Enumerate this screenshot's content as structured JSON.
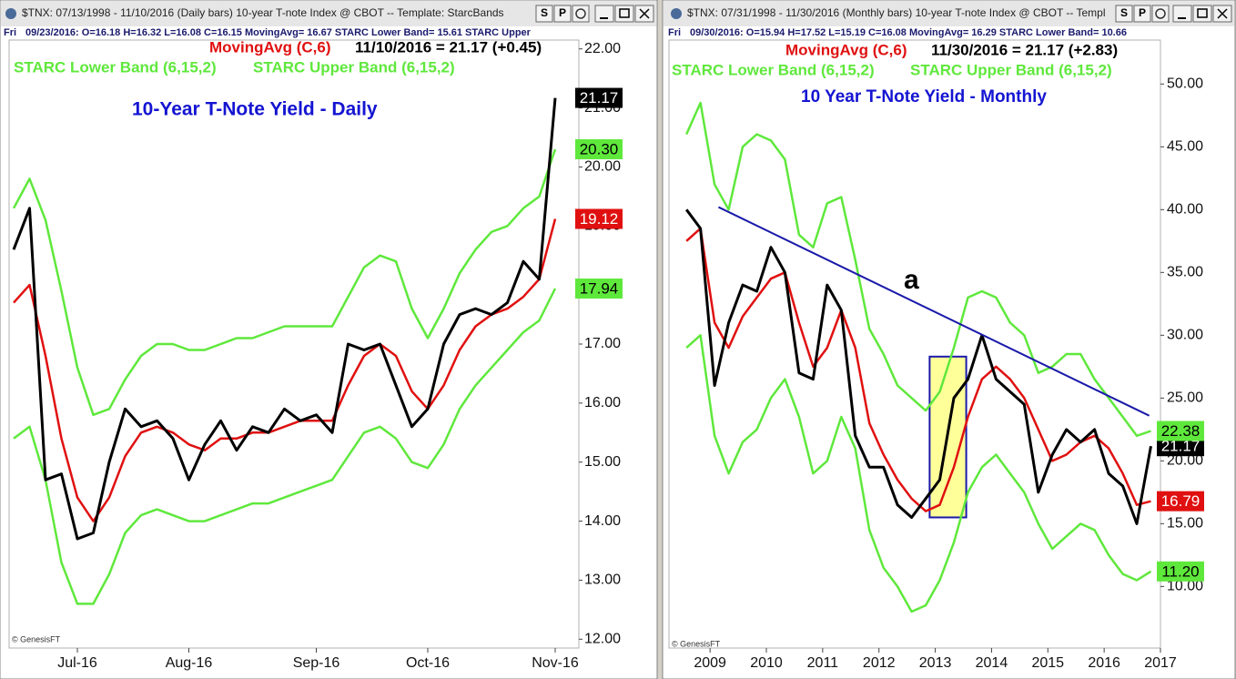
{
  "windows": [
    {
      "title": "$TNX: 07/13/1998 - 11/10/2016 (Daily bars)  10-year T-note Index @ CBOT  --  Template: StarcBands",
      "buttons": [
        "S",
        "P"
      ],
      "day": "Fri",
      "info": "09/23/2016:  O=16.18  H=16.32  L=16.08  C=16.15  MovingAvg= 16.67  STARC Lower Band= 15.61  STARC Upper"
    },
    {
      "title": "$TNX: 07/31/1998 - 11/30/2016 (Monthly bars)  10-year T-note Index @ CBOT  --  Templ",
      "buttons": [
        "S",
        "P"
      ],
      "day": "Fri",
      "info": "09/30/2016:  O=15.94  H=17.52  L=15.19  C=16.08  MovingAvg= 16.29  STARC Lower Band= 10.66"
    }
  ],
  "chart_data": [
    {
      "type": "line",
      "title": "10-Year T-Note Yield - Daily",
      "readout": "11/10/2016 = 21.17 (+0.45)",
      "credit": "© GenesisFT",
      "categories": [
        null,
        null,
        null,
        null,
        "Jul-16",
        null,
        null,
        null,
        null,
        null,
        null,
        "Aug-16",
        null,
        null,
        null,
        null,
        null,
        null,
        null,
        "Sep-16",
        null,
        null,
        null,
        null,
        null,
        null,
        "Oct-16",
        null,
        null,
        null,
        null,
        null,
        null,
        null,
        "Nov-16"
      ],
      "series": [
        {
          "color": "#000000",
          "values": [
            18.6,
            19.3,
            14.7,
            14.8,
            13.7,
            13.8,
            15.0,
            15.9,
            15.6,
            15.7,
            15.4,
            14.7,
            15.3,
            15.7,
            15.2,
            15.6,
            15.5,
            15.9,
            15.7,
            15.8,
            15.5,
            17.0,
            16.9,
            17.0,
            16.3,
            15.6,
            15.9,
            17.0,
            17.5,
            17.6,
            17.5,
            17.7,
            18.4,
            18.1,
            21.17
          ],
          "value_labels": [
            null,
            null,
            null,
            null,
            null,
            null,
            null,
            null,
            null,
            null,
            null,
            null,
            null,
            null,
            null,
            null,
            null,
            null,
            null,
            null,
            null,
            null,
            null,
            null,
            null,
            null,
            null,
            null,
            null,
            null,
            null,
            null,
            null,
            null,
            "21.17"
          ]
        },
        {
          "name": "MovingAvg (C,6)",
          "color": "#e01010",
          "values": [
            17.7,
            18.0,
            16.8,
            15.4,
            14.4,
            14.0,
            14.4,
            15.1,
            15.5,
            15.6,
            15.5,
            15.3,
            15.2,
            15.4,
            15.4,
            15.5,
            15.5,
            15.6,
            15.7,
            15.7,
            15.7,
            16.3,
            16.8,
            17.0,
            16.8,
            16.2,
            15.9,
            16.3,
            16.9,
            17.3,
            17.5,
            17.6,
            17.8,
            18.1,
            19.12
          ],
          "value_labels": [
            null,
            null,
            null,
            null,
            null,
            null,
            null,
            null,
            null,
            null,
            null,
            null,
            null,
            null,
            null,
            null,
            null,
            null,
            null,
            null,
            null,
            null,
            null,
            null,
            null,
            null,
            null,
            null,
            null,
            null,
            null,
            null,
            null,
            null,
            "19.12"
          ]
        },
        {
          "name": "STARC Lower Band (6,15,2)",
          "color": "#5fe83c",
          "values": [
            15.4,
            15.6,
            14.7,
            13.3,
            12.6,
            12.6,
            13.1,
            13.8,
            14.1,
            14.2,
            14.1,
            14.0,
            14.0,
            14.1,
            14.2,
            14.3,
            14.3,
            14.4,
            14.5,
            14.6,
            14.7,
            15.1,
            15.5,
            15.6,
            15.4,
            15.0,
            14.9,
            15.3,
            15.9,
            16.3,
            16.6,
            16.9,
            17.2,
            17.4,
            17.94
          ],
          "value_labels": [
            null,
            null,
            null,
            null,
            null,
            null,
            null,
            null,
            null,
            null,
            null,
            null,
            null,
            null,
            null,
            null,
            null,
            null,
            null,
            null,
            null,
            null,
            null,
            null,
            null,
            null,
            null,
            null,
            null,
            null,
            null,
            null,
            null,
            null,
            "17.94"
          ]
        },
        {
          "name": "STARC Upper Band (6,15,2)",
          "color": "#5fe83c",
          "values": [
            19.3,
            19.8,
            19.1,
            17.9,
            16.6,
            15.8,
            15.9,
            16.4,
            16.8,
            17.0,
            17.0,
            16.9,
            16.9,
            17.0,
            17.1,
            17.1,
            17.2,
            17.3,
            17.3,
            17.3,
            17.3,
            17.8,
            18.3,
            18.5,
            18.4,
            17.6,
            17.1,
            17.6,
            18.2,
            18.6,
            18.9,
            19.0,
            19.3,
            19.5,
            20.3
          ],
          "value_labels": [
            null,
            null,
            null,
            null,
            null,
            null,
            null,
            null,
            null,
            null,
            null,
            null,
            null,
            null,
            null,
            null,
            null,
            null,
            null,
            null,
            null,
            null,
            null,
            null,
            null,
            null,
            null,
            null,
            null,
            null,
            null,
            null,
            null,
            null,
            "20.30"
          ]
        }
      ],
      "ylim": [
        11.85,
        22.15
      ],
      "yticks": [
        {
          "value": 12,
          "label": "12.00"
        },
        {
          "value": 13,
          "label": "13.00"
        },
        {
          "value": 14,
          "label": "14.00"
        },
        {
          "value": 15,
          "label": "15.00"
        },
        {
          "value": 16,
          "label": "16.00"
        },
        {
          "value": 17,
          "label": "17.00"
        },
        {
          "value": 18,
          "label": "18.00"
        },
        {
          "value": 19,
          "label": "19.00"
        },
        {
          "value": 20,
          "label": "20.00"
        },
        {
          "value": 21,
          "label": "21.00"
        },
        {
          "value": 22,
          "label": "22.00"
        }
      ]
    },
    {
      "type": "line",
      "title": "10 Year T-Note Yield - Monthly",
      "readout": "11/30/2016 = 21.17 (+2.83)",
      "credit": "© GenesisFT",
      "annotation": "a",
      "x": [
        2008.58,
        2008.83,
        2009.08,
        2009.33,
        2009.58,
        2009.83,
        2010.08,
        2010.33,
        2010.58,
        2010.83,
        2011.08,
        2011.33,
        2011.58,
        2011.83,
        2012.08,
        2012.33,
        2012.58,
        2012.83,
        2013.08,
        2013.33,
        2013.58,
        2013.83,
        2014.08,
        2014.33,
        2014.58,
        2014.83,
        2015.08,
        2015.33,
        2015.58,
        2015.83,
        2016.08,
        2016.33,
        2016.58,
        2016.83
      ],
      "series": [
        {
          "color": "#000000",
          "values": [
            40.0,
            38.5,
            26.0,
            31.0,
            34.0,
            33.5,
            37.0,
            35.0,
            27.0,
            26.5,
            34.0,
            32.0,
            22.0,
            19.5,
            19.5,
            16.5,
            15.5,
            17.0,
            18.5,
            25.0,
            26.5,
            30.0,
            26.5,
            25.5,
            24.5,
            17.5,
            20.5,
            22.5,
            21.5,
            22.5,
            19.0,
            18.0,
            15.0,
            21.17
          ],
          "value_labels": [
            null,
            null,
            null,
            null,
            null,
            null,
            null,
            null,
            null,
            null,
            null,
            null,
            null,
            null,
            null,
            null,
            null,
            null,
            null,
            null,
            null,
            null,
            null,
            null,
            null,
            null,
            null,
            null,
            null,
            null,
            null,
            null,
            null,
            "21.17"
          ]
        },
        {
          "name": "MovingAvg (C,6)",
          "color": "#e01010",
          "values": [
            37.5,
            38.5,
            31.0,
            29.0,
            31.5,
            33.0,
            34.5,
            35.0,
            31.0,
            27.5,
            29.0,
            32.0,
            29.0,
            23.0,
            20.5,
            18.5,
            17.0,
            16.0,
            16.5,
            19.5,
            23.5,
            26.5,
            27.5,
            26.5,
            25.0,
            22.5,
            20.0,
            20.5,
            21.5,
            22.0,
            21.0,
            19.0,
            16.5,
            16.79
          ],
          "value_labels": [
            null,
            null,
            null,
            null,
            null,
            null,
            null,
            null,
            null,
            null,
            null,
            null,
            null,
            null,
            null,
            null,
            null,
            null,
            null,
            null,
            null,
            null,
            null,
            null,
            null,
            null,
            null,
            null,
            null,
            null,
            null,
            null,
            null,
            "16.79"
          ]
        },
        {
          "name": "STARC Lower Band (6,15,2)",
          "color": "#5fe83c",
          "values": [
            29.0,
            30.0,
            22.0,
            19.0,
            21.5,
            22.5,
            25.0,
            26.5,
            23.5,
            19.0,
            20.0,
            23.5,
            21.0,
            14.5,
            11.5,
            10.0,
            8.0,
            8.5,
            10.5,
            13.5,
            17.5,
            19.5,
            20.5,
            19.0,
            17.5,
            15.0,
            13.0,
            14.0,
            15.0,
            14.5,
            12.5,
            11.0,
            10.5,
            11.2
          ],
          "value_labels": [
            null,
            null,
            null,
            null,
            null,
            null,
            null,
            null,
            null,
            null,
            null,
            null,
            null,
            null,
            null,
            null,
            null,
            null,
            null,
            null,
            null,
            null,
            null,
            null,
            null,
            null,
            null,
            null,
            null,
            null,
            null,
            null,
            null,
            "11.20"
          ]
        },
        {
          "name": "STARC Upper Band (6,15,2)",
          "color": "#5fe83c",
          "values": [
            46.0,
            48.5,
            42.0,
            40.0,
            45.0,
            46.0,
            45.5,
            44.0,
            38.0,
            37.0,
            40.5,
            41.0,
            36.0,
            30.5,
            28.5,
            26.0,
            25.0,
            24.0,
            25.5,
            29.0,
            33.0,
            33.5,
            33.0,
            31.0,
            30.0,
            27.0,
            27.5,
            28.5,
            28.5,
            26.5,
            25.0,
            23.5,
            22.0,
            22.38
          ],
          "value_labels": [
            null,
            null,
            null,
            null,
            null,
            null,
            null,
            null,
            null,
            null,
            null,
            null,
            null,
            null,
            null,
            null,
            null,
            null,
            null,
            null,
            null,
            null,
            null,
            null,
            null,
            null,
            null,
            null,
            null,
            null,
            null,
            null,
            null,
            "22.38"
          ]
        }
      ],
      "trendline": {
        "x": [
          2009.15,
          2016.8
        ],
        "values": [
          40.2,
          23.6
        ],
        "color": "#1a1aaa"
      },
      "highlight": {
        "x": [
          2012.9,
          2013.55
        ],
        "values": [
          15.5,
          28.3
        ],
        "color": "#ffff99"
      },
      "xlim": [
        2008.27,
        2017.0
      ],
      "xticks": [
        2009,
        2010,
        2011,
        2012,
        2013,
        2014,
        2015,
        2016,
        2017
      ],
      "ylim": [
        5.1,
        53.5
      ],
      "yticks": [
        {
          "value": 10,
          "label": "10.00"
        },
        {
          "value": 15,
          "label": "15.00"
        },
        {
          "value": 20,
          "label": "20.00"
        },
        {
          "value": 25,
          "label": "25.00"
        },
        {
          "value": 30,
          "label": "30.00"
        },
        {
          "value": 35,
          "label": "35.00"
        },
        {
          "value": 40,
          "label": "40.00"
        },
        {
          "value": 45,
          "label": "45.00"
        },
        {
          "value": 50,
          "label": "50.00"
        }
      ]
    }
  ]
}
